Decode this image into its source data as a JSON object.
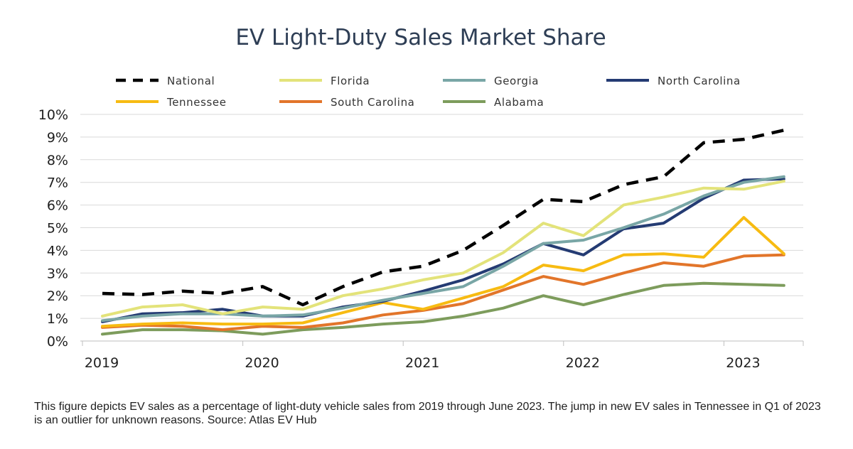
{
  "chart_data": {
    "type": "line",
    "title": "EV Light-Duty Sales Market Share",
    "xlabel": "",
    "ylabel": "",
    "x_unit": "quarter",
    "x": [
      "2019 Q1",
      "2019 Q2",
      "2019 Q3",
      "2019 Q4",
      "2020 Q1",
      "2020 Q2",
      "2020 Q3",
      "2020 Q4",
      "2021 Q1",
      "2021 Q2",
      "2021 Q3",
      "2021 Q4",
      "2022 Q1",
      "2022 Q2",
      "2022 Q3",
      "2022 Q4",
      "2023 Q1",
      "2023 Q2"
    ],
    "x_tick_labels": [
      "2019",
      "2020",
      "2021",
      "2022",
      "2023"
    ],
    "y_tick_labels": [
      "0%",
      "1%",
      "2%",
      "3%",
      "4%",
      "5%",
      "6%",
      "7%",
      "8%",
      "9%",
      "10%"
    ],
    "ylim": [
      0,
      10
    ],
    "grid": true,
    "legend_position": "top",
    "series": [
      {
        "name": "National",
        "color": "#000000",
        "style": "dashed",
        "values": [
          2.1,
          2.05,
          2.2,
          2.1,
          2.4,
          1.6,
          2.4,
          3.05,
          3.3,
          4.0,
          5.1,
          6.25,
          6.15,
          6.9,
          7.25,
          8.75,
          8.9,
          9.3
        ]
      },
      {
        "name": "Florida",
        "color": "#e3e37a",
        "style": "solid",
        "values": [
          1.1,
          1.5,
          1.6,
          1.2,
          1.5,
          1.4,
          2.0,
          2.3,
          2.7,
          3.0,
          3.9,
          5.2,
          4.65,
          6.0,
          6.35,
          6.75,
          6.7,
          7.05
        ]
      },
      {
        "name": "Georgia",
        "color": "#79a6a6",
        "style": "solid",
        "values": [
          0.9,
          1.1,
          1.2,
          1.2,
          1.1,
          1.15,
          1.45,
          1.8,
          2.1,
          2.4,
          3.3,
          4.3,
          4.45,
          5.0,
          5.6,
          6.4,
          7.0,
          7.25
        ]
      },
      {
        "name": "North Carolina",
        "color": "#243b73",
        "style": "solid",
        "values": [
          0.85,
          1.2,
          1.25,
          1.4,
          1.1,
          1.1,
          1.5,
          1.75,
          2.2,
          2.7,
          3.4,
          4.3,
          3.8,
          4.95,
          5.2,
          6.3,
          7.1,
          7.15
        ]
      },
      {
        "name": "Tennessee",
        "color": "#f7bb12",
        "style": "solid",
        "values": [
          0.65,
          0.75,
          0.8,
          0.75,
          0.75,
          0.8,
          1.25,
          1.7,
          1.4,
          1.9,
          2.4,
          3.35,
          3.1,
          3.8,
          3.85,
          3.7,
          5.45,
          3.85
        ]
      },
      {
        "name": "South Carolina",
        "color": "#e2752a",
        "style": "solid",
        "values": [
          0.6,
          0.7,
          0.65,
          0.5,
          0.65,
          0.6,
          0.8,
          1.15,
          1.35,
          1.65,
          2.25,
          2.85,
          2.5,
          3.0,
          3.45,
          3.3,
          3.75,
          3.8
        ]
      },
      {
        "name": "Alabama",
        "color": "#7d9c5c",
        "style": "solid",
        "values": [
          0.3,
          0.5,
          0.5,
          0.45,
          0.3,
          0.5,
          0.6,
          0.75,
          0.85,
          1.1,
          1.45,
          2.0,
          1.6,
          2.05,
          2.45,
          2.55,
          2.5,
          2.45
        ]
      }
    ],
    "legend": [
      {
        "label": "National"
      },
      {
        "label": "Florida"
      },
      {
        "label": "Georgia"
      },
      {
        "label": "North Carolina"
      },
      {
        "label": "Tennessee"
      },
      {
        "label": "South Carolina"
      },
      {
        "label": "Alabama"
      }
    ]
  },
  "caption": "This figure depicts EV sales as a percentage of light-duty vehicle sales from 2019 through June 2023. The jump in new EV sales in Tennessee in Q1 of 2023 is an outlier for unknown reasons.  Source: Atlas EV Hub"
}
